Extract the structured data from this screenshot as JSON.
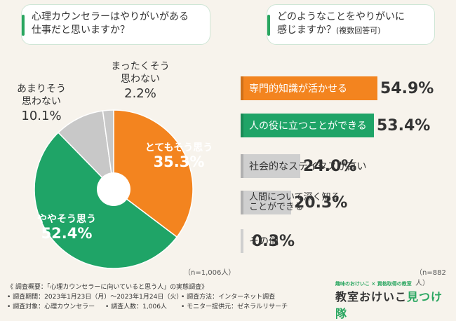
{
  "question_left": {
    "line1": "心理カウンセラーはやりがいがある",
    "line2": "仕事だと思いますか？"
  },
  "question_right": {
    "line1": "どのようなことをやりがいに",
    "line2": "感じますか？",
    "note": "(複数回答可)"
  },
  "colors": {
    "orange": "#f3841f",
    "green": "#1fa467",
    "gray": "#c8c8c8",
    "center": "#ffffff"
  },
  "chart_data": [
    {
      "type": "pie",
      "title": "心理カウンセラーはやりがいがある仕事だと思いますか？",
      "slices": [
        {
          "label": "とてもそう思う",
          "value": 35.3,
          "color": "#f3841f"
        },
        {
          "label": "ややそう思う",
          "value": 52.4,
          "color": "#1fa467"
        },
        {
          "label": "あまりそう思わない",
          "value": 10.1,
          "color": "#c8c8c8"
        },
        {
          "label": "まったくそう思わない",
          "value": 2.2,
          "color": "#c8c8c8"
        }
      ],
      "label_text": {
        "very": {
          "name": "とてもそう思う",
          "pct": "35.3%"
        },
        "some": {
          "name": "ややそう思う",
          "pct": "52.4%"
        },
        "notmuch": {
          "line1": "あまりそう",
          "line2": "思わない",
          "pct": "10.1%"
        },
        "notatall": {
          "line1": "まったくそう",
          "line2": "思わない",
          "pct": "2.2%"
        }
      },
      "n": "（n=1,006人）"
    },
    {
      "type": "bar",
      "title": "どのようなことをやりがいに感じますか？(複数回答可)",
      "categories": [
        "専門的知識が活かせる",
        "人の役に立つことができる",
        "社会的なステイタスが高い",
        "人間について深く知ることができる",
        "その他"
      ],
      "values": [
        54.9,
        53.4,
        24.0,
        20.3,
        0.3
      ],
      "labels": {
        "b1": "専門的知識が活かせる",
        "b2": "人の役に立つことができる",
        "b3": "社会的なステイタスが高い",
        "b4_line1": "人間について深く知る",
        "b4_line2": "ことができる",
        "b5": "その他"
      },
      "pct_text": [
        "54.9%",
        "53.4%",
        "24.0%",
        "20.3%",
        "0.3%"
      ],
      "bar_colors": [
        "#f3841f",
        "#1fa467",
        "#cfcfcf",
        "#cfcfcf",
        "#cfcfcf"
      ],
      "n": "（n=882人）"
    }
  ],
  "survey": {
    "title": "《 調査概要：「心理カウンセラーに向いていると思う人」の実態調査》",
    "period": "• 調査期間：2023年1月23日（月）～2023年1月24日（火）",
    "method": "• 調査方法：インターネット調査",
    "target": "• 調査対象：心理カウンセラー",
    "count": "• 調査人数：1,006人",
    "provider": "• モニター提供元：ゼネラルリサーチ"
  },
  "logo": {
    "sub": "趣味のおけいこ × 資格取得の教室",
    "main_a": "教室おけいこ",
    "main_b": "見つけ隊"
  }
}
